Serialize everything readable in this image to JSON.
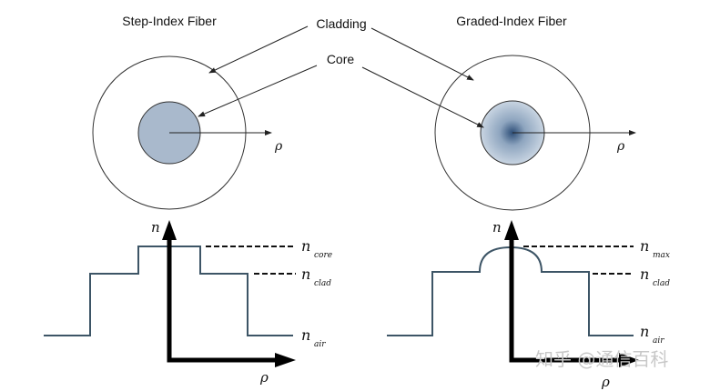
{
  "titles": {
    "step": "Step-Index Fiber",
    "graded": "Graded-Index Fiber"
  },
  "labels": {
    "cladding": "Cladding",
    "core": "Core",
    "rho": "ρ",
    "n": "n"
  },
  "profile_labels": {
    "step": [
      {
        "base": "n",
        "sub": "core"
      },
      {
        "base": "n",
        "sub": "clad"
      },
      {
        "base": "n",
        "sub": "air"
      }
    ],
    "graded": [
      {
        "base": "n",
        "sub": "max"
      },
      {
        "base": "n",
        "sub": "clad"
      },
      {
        "base": "n",
        "sub": "air"
      }
    ]
  },
  "watermark": "知乎 @通信百科",
  "colors": {
    "core_fill": "#a9b9cc",
    "core_center": "#2d4e78",
    "profile_line": "#3d5566",
    "axis": "#000000"
  }
}
